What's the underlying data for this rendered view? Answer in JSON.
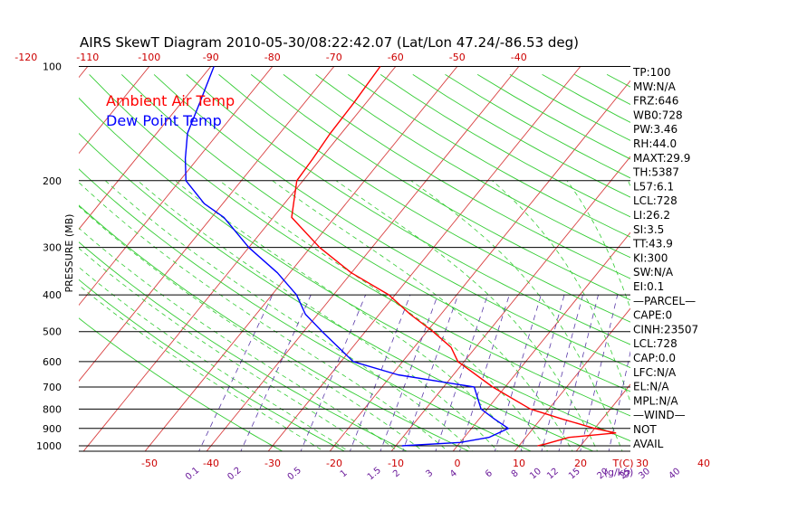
{
  "chart_data": {
    "type": "line",
    "title": "AIRS SkewT Diagram 2010-05-30/08:22:42.07 (Lat/Lon 47.24/-86.53 deg)",
    "ylabel": "PRESSURE (MB)",
    "y_scale": "log-pressure",
    "ylim": [
      1000,
      100
    ],
    "pressure_ticks": [
      100,
      200,
      300,
      400,
      500,
      600,
      700,
      800,
      900,
      1000
    ],
    "top_temp_ticks": [
      -120,
      -110,
      -100,
      -90,
      -80,
      -70,
      -60,
      -50,
      -40
    ],
    "bottom_temp_ticks": [
      -50,
      -40,
      -30,
      -20,
      -10,
      0,
      10,
      20,
      30,
      40
    ],
    "bottom_axis_label": "T(C)",
    "mixing_ratio_ticks": [
      "0.1",
      "0.2",
      "0.5",
      "1",
      "1.5",
      "2",
      "3",
      "4",
      "6",
      "8",
      "10",
      "12",
      "15",
      "20",
      "25",
      "30",
      "40"
    ],
    "mixing_ratio_label": "(g/kg)",
    "grid": true,
    "legend_position": "top-left",
    "series": [
      {
        "name": "Ambient Air Temp",
        "color": "#ff0000",
        "points": [
          {
            "p": 1000,
            "t": 13
          },
          {
            "p": 990,
            "t": 14
          },
          {
            "p": 950,
            "t": 17
          },
          {
            "p": 925,
            "t": 24
          },
          {
            "p": 900,
            "t": 20
          },
          {
            "p": 850,
            "t": 13.5
          },
          {
            "p": 800,
            "t": 7
          },
          {
            "p": 700,
            "t": -2
          },
          {
            "p": 600,
            "t": -11
          },
          {
            "p": 550,
            "t": -14
          },
          {
            "p": 500,
            "t": -19
          },
          {
            "p": 450,
            "t": -25
          },
          {
            "p": 400,
            "t": -31
          },
          {
            "p": 350,
            "t": -40
          },
          {
            "p": 300,
            "t": -48.5
          },
          {
            "p": 250,
            "t": -57
          },
          {
            "p": 200,
            "t": -61
          },
          {
            "p": 175,
            "t": -61.3
          },
          {
            "p": 150,
            "t": -61.8
          },
          {
            "p": 125,
            "t": -62
          },
          {
            "p": 100,
            "t": -62.5
          }
        ]
      },
      {
        "name": "Dew Point Temp",
        "color": "#0000ff",
        "points": [
          {
            "p": 1000,
            "t": -9
          },
          {
            "p": 980,
            "t": 0
          },
          {
            "p": 950,
            "t": 4
          },
          {
            "p": 900,
            "t": 6
          },
          {
            "p": 850,
            "t": 2.5
          },
          {
            "p": 800,
            "t": -1
          },
          {
            "p": 700,
            "t": -5
          },
          {
            "p": 650,
            "t": -19
          },
          {
            "p": 600,
            "t": -28
          },
          {
            "p": 500,
            "t": -37
          },
          {
            "p": 450,
            "t": -42
          },
          {
            "p": 400,
            "t": -46
          },
          {
            "p": 350,
            "t": -52
          },
          {
            "p": 300,
            "t": -60
          },
          {
            "p": 250,
            "t": -68
          },
          {
            "p": 230,
            "t": -73
          },
          {
            "p": 200,
            "t": -79
          },
          {
            "p": 175,
            "t": -82
          },
          {
            "p": 150,
            "t": -85
          },
          {
            "p": 125,
            "t": -87
          },
          {
            "p": 100,
            "t": -89.5
          }
        ]
      }
    ]
  },
  "indices": [
    "TP:100",
    "MW:N/A",
    "FRZ:646",
    "WB0:728",
    "PW:3.46",
    "RH:44.0",
    "MAXT:29.9",
    "TH:5387",
    "L57:6.1",
    "LCL:728",
    "LI:26.2",
    "SI:3.5",
    "TT:43.9",
    "KI:300",
    "SW:N/A",
    "EI:0.1",
    "—PARCEL—",
    "CAPE:0",
    "CINH:23507",
    "LCL:728",
    "CAP:0.0",
    "LFC:N/A",
    "EL:N/A",
    "MPL:N/A",
    "—WIND—",
    "NOT",
    "AVAIL"
  ],
  "colors": {
    "isotherm": "#d84040",
    "dry_adiabat": "#33cc33",
    "moist_adiabat": "#33cc33",
    "mixing_ratio": "#5a3aa8",
    "isobar": "#000000",
    "top_tick_text": "#cc0000",
    "bottom_tick_text": "#cc0000",
    "mixing_text": "#6a1a9a",
    "legend_air": "#ff0000",
    "legend_dew": "#0000ff"
  }
}
